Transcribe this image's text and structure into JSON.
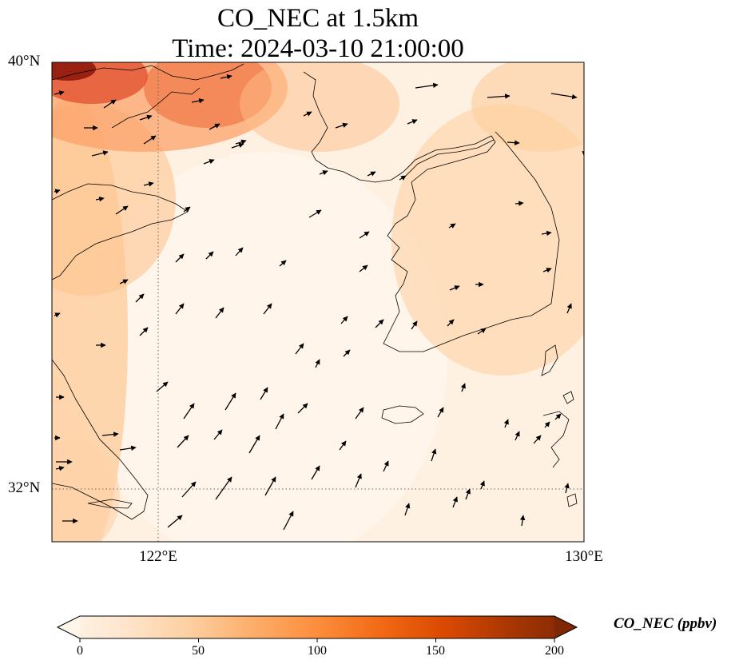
{
  "title": {
    "line1": "CO_NEC at 1.5km",
    "line2": "Time: 2024-03-10 21:00:00"
  },
  "map": {
    "lat_range": [
      31,
      40
    ],
    "lon_range": [
      119.5,
      130
    ],
    "lat_labels": [
      "40°N",
      "32°N"
    ],
    "lon_labels": [
      "122°E",
      "130°E"
    ],
    "gridlines": "dotted at 122°E and 32°N",
    "field": "CO_NEC concentration, high in north-west (Bohai / Liaodong), low over Yellow Sea, moderate over Korean Peninsula",
    "vectors": "wind arrows, mostly northward / north-eastward"
  },
  "colorbar": {
    "label": "CO_NEC (ppbv)",
    "ticks": [
      "0",
      "50",
      "100",
      "150",
      "200"
    ],
    "range": [
      0,
      200
    ],
    "colormap": [
      "#fff5eb",
      "#fee6ce",
      "#fdd0a2",
      "#fdae6b",
      "#fd8d3c",
      "#f16913",
      "#d94801",
      "#a63603",
      "#7f2704"
    ],
    "extend": "both"
  }
}
